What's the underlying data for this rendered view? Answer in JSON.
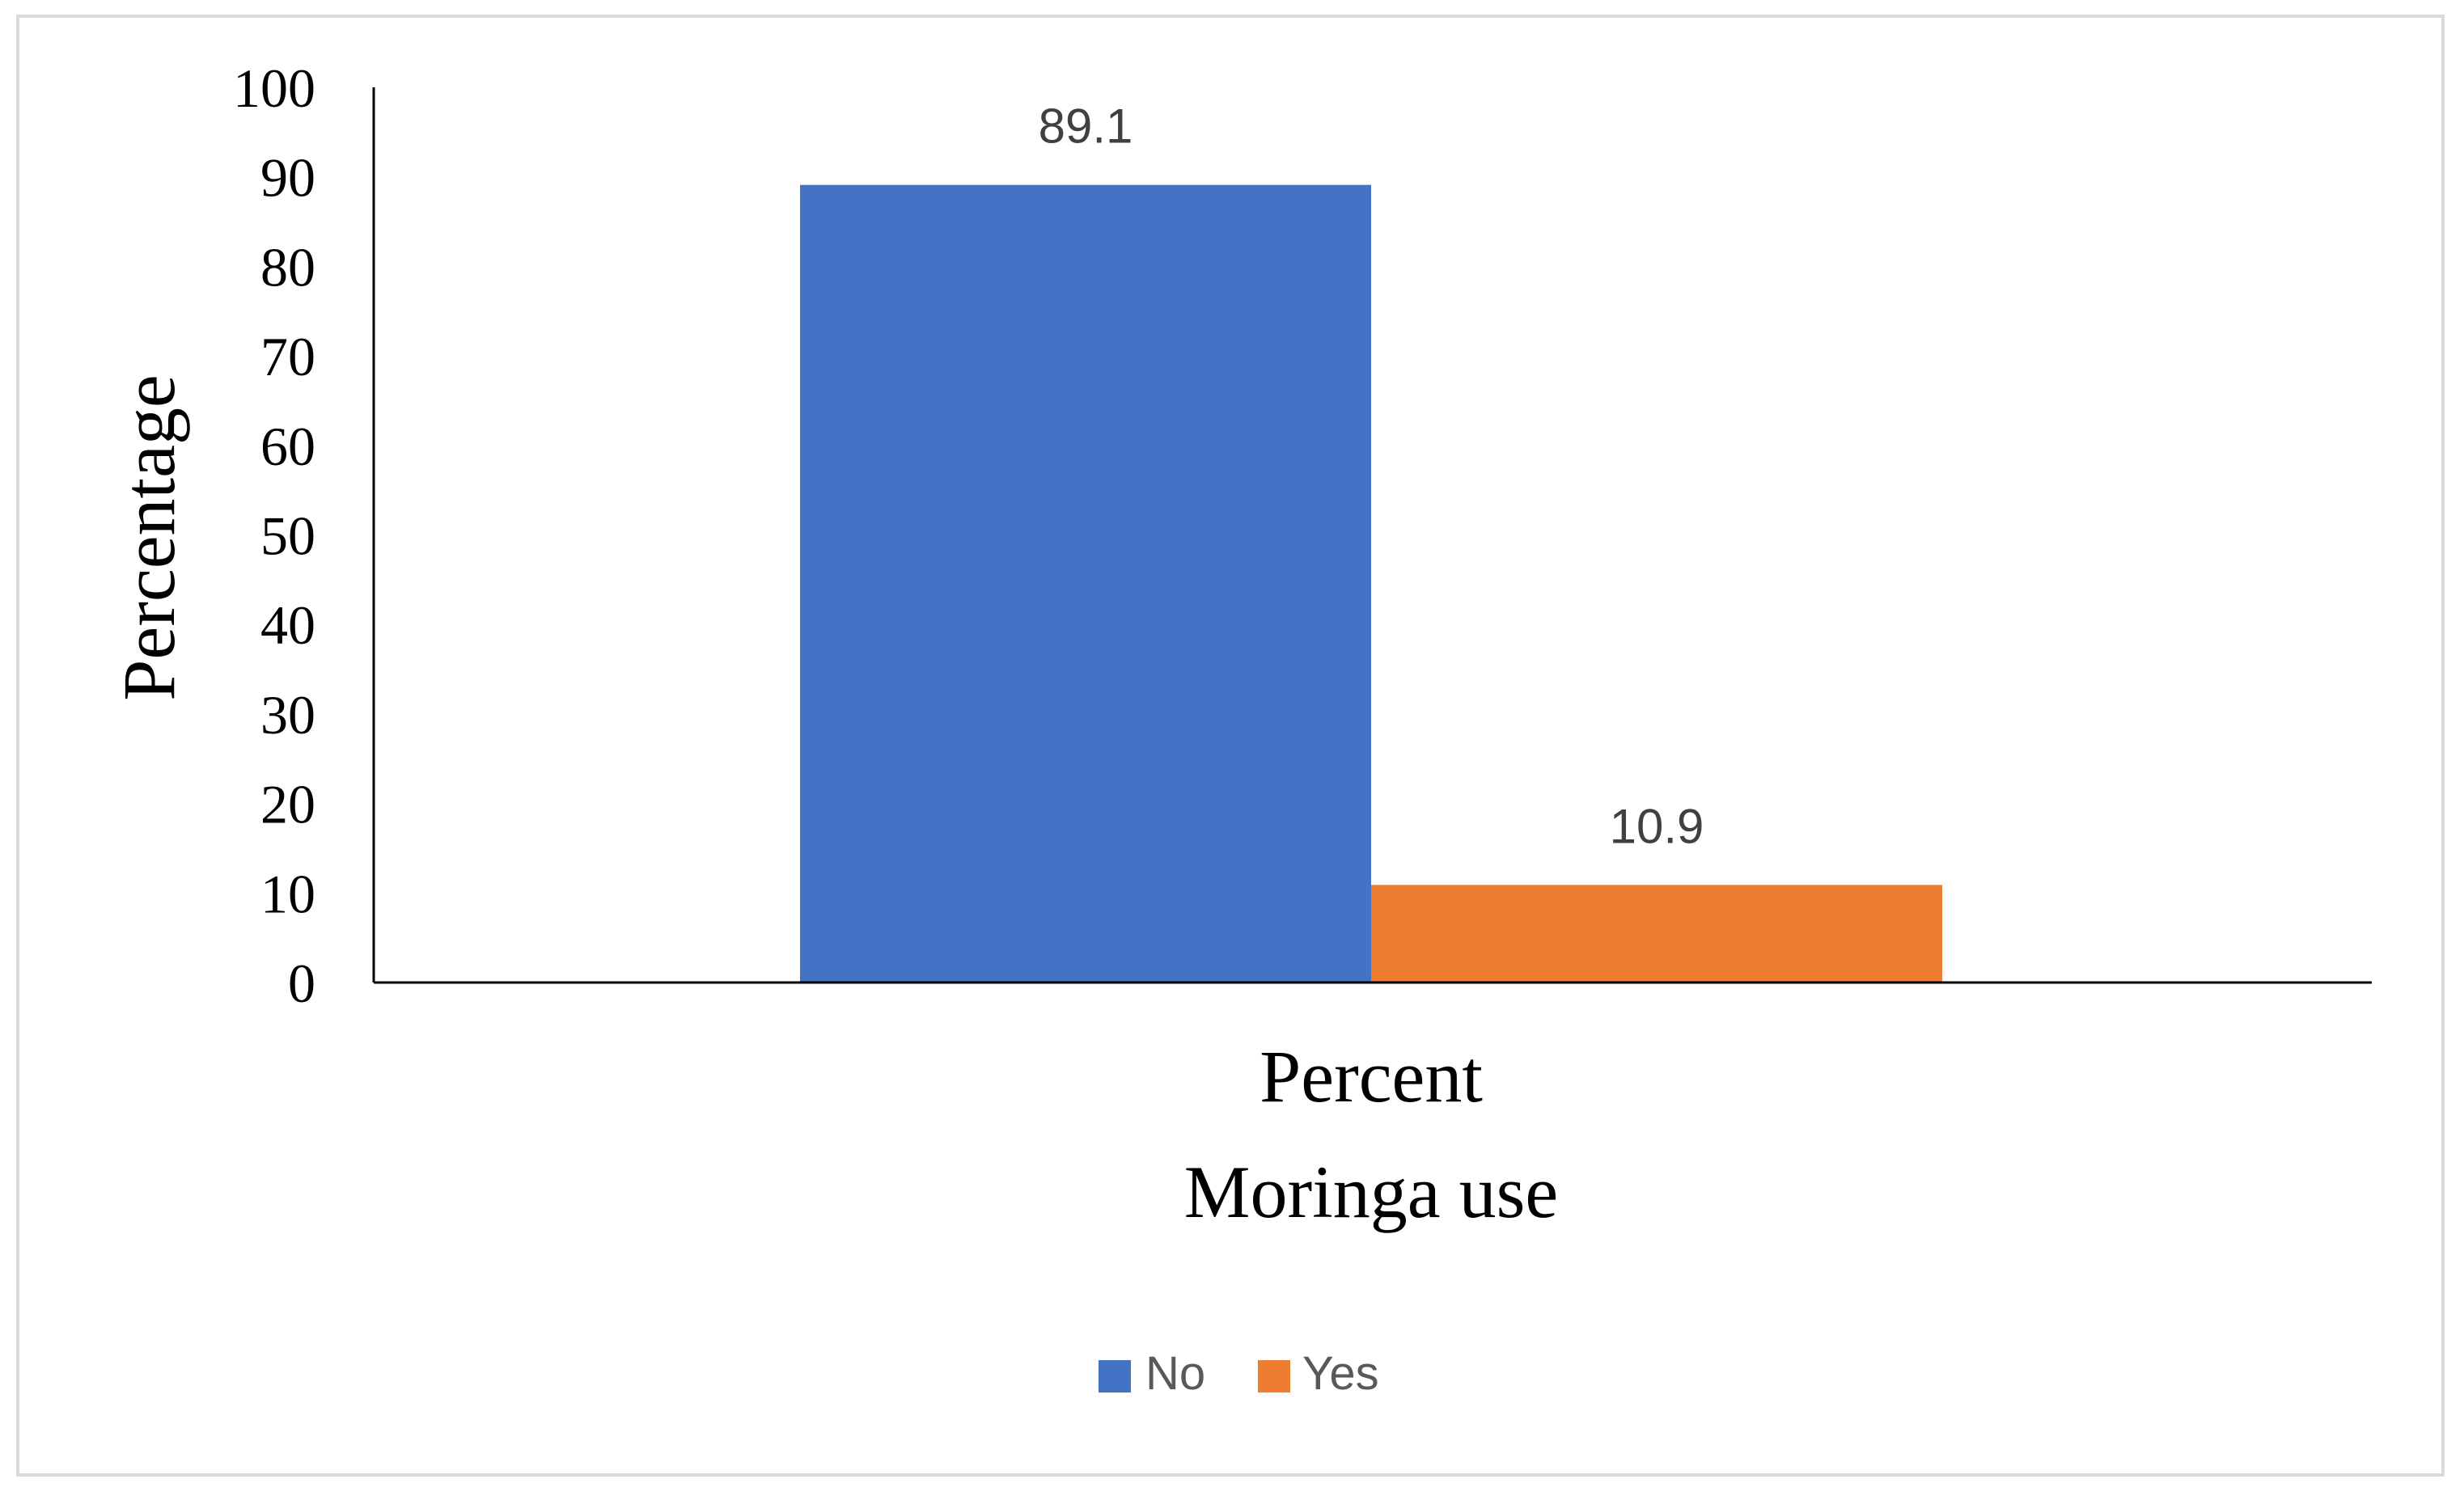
{
  "chart_data": {
    "type": "bar",
    "title": "",
    "categories": [
      "Percent"
    ],
    "series": [
      {
        "name": "No",
        "values": [
          89.1
        ],
        "color": "#4472C4"
      },
      {
        "name": "Yes",
        "values": [
          10.9
        ],
        "color": "#ED7D31"
      }
    ],
    "data_labels": [
      "89.1",
      "10.9"
    ],
    "xlabel": "Moringa use",
    "ylabel": "Percentage",
    "ylim": [
      0,
      100
    ],
    "yticks": [
      "0",
      "10",
      "20",
      "30",
      "40",
      "50",
      "60",
      "70",
      "80",
      "90",
      "100"
    ],
    "grid": false,
    "legend_position": "bottom"
  }
}
